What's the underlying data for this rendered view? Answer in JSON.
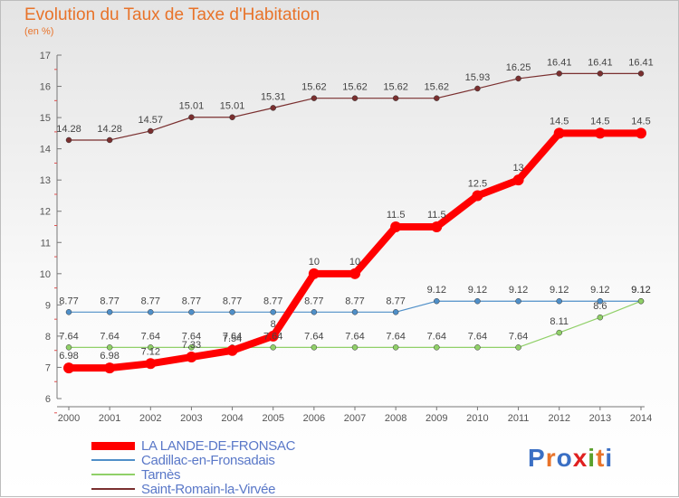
{
  "header": {
    "title": "Evolution du Taux de Taxe d'Habitation",
    "unit": "(en %)"
  },
  "brand": {
    "text": "Proxiti",
    "colors": [
      "#3a6fc4",
      "#e8732a",
      "#3a6fc4",
      "#e02020",
      "#5aa02c",
      "#e8732a",
      "#3a6fc4"
    ]
  },
  "chart_data": {
    "type": "line",
    "x": [
      "2000",
      "2001",
      "2002",
      "2003",
      "2004",
      "2005",
      "2006",
      "2007",
      "2008",
      "2009",
      "2010",
      "2011",
      "2012",
      "2013",
      "2014"
    ],
    "ylim": [
      6,
      17
    ],
    "yticks": [
      "6",
      "7",
      "8",
      "9",
      "10",
      "11",
      "12",
      "13",
      "14",
      "15",
      "16",
      "17"
    ],
    "grid": false,
    "legend_position": "bottom",
    "series": [
      {
        "name": "LA LANDE-DE-FRONSAC",
        "color": "#ff0000",
        "width": 8,
        "marker": 6,
        "values": [
          6.98,
          6.98,
          7.12,
          7.33,
          7.54,
          8,
          10,
          10,
          11.5,
          11.5,
          12.5,
          13,
          14.5,
          14.5,
          14.5
        ],
        "labels": [
          "6.98",
          "6.98",
          "7.12",
          "7.33",
          "7.54",
          "8",
          "10",
          "10",
          "11.5",
          "11.5",
          "12.5",
          "13",
          "14.5",
          "14.5",
          "14.5"
        ]
      },
      {
        "name": "Cadillac-en-Fronsadais",
        "color": "#4f8fc8",
        "width": 1.2,
        "marker": 3,
        "values": [
          8.77,
          8.77,
          8.77,
          8.77,
          8.77,
          8.77,
          8.77,
          8.77,
          8.77,
          9.12,
          9.12,
          9.12,
          9.12,
          9.12,
          9.12
        ],
        "labels": [
          "8.77",
          "8.77",
          "8.77",
          "8.77",
          "8.77",
          "8.77",
          "8.77",
          "8.77",
          "8.77",
          "9.12",
          "9.12",
          "9.12",
          "9.12",
          "9.12",
          "9.12"
        ]
      },
      {
        "name": "Tarnès",
        "color": "#90d068",
        "width": 1.2,
        "marker": 3,
        "values": [
          7.64,
          7.64,
          7.64,
          7.64,
          7.64,
          7.64,
          7.64,
          7.64,
          7.64,
          7.64,
          7.64,
          7.64,
          8.11,
          8.6,
          9.12
        ],
        "labels": [
          "7.64",
          "7.64",
          "7.64",
          "7.64",
          "7.64",
          "7.64",
          "7.64",
          "7.64",
          "7.64",
          "7.64",
          "7.64",
          "7.64",
          "8.11",
          "8.6",
          "9.12"
        ]
      },
      {
        "name": "Saint-Romain-la-Virvée",
        "color": "#7a2f2f",
        "width": 1.2,
        "marker": 3,
        "values": [
          14.28,
          14.28,
          14.57,
          15.01,
          15.01,
          15.31,
          15.62,
          15.62,
          15.62,
          15.62,
          15.93,
          16.25,
          16.41,
          16.41,
          16.41
        ],
        "labels": [
          "14.28",
          "14.28",
          "14.57",
          "15.01",
          "15.01",
          "15.31",
          "15.62",
          "15.62",
          "15.62",
          "15.62",
          "15.93",
          "16.25",
          "16.41",
          "16.41",
          "16.41"
        ]
      }
    ]
  }
}
